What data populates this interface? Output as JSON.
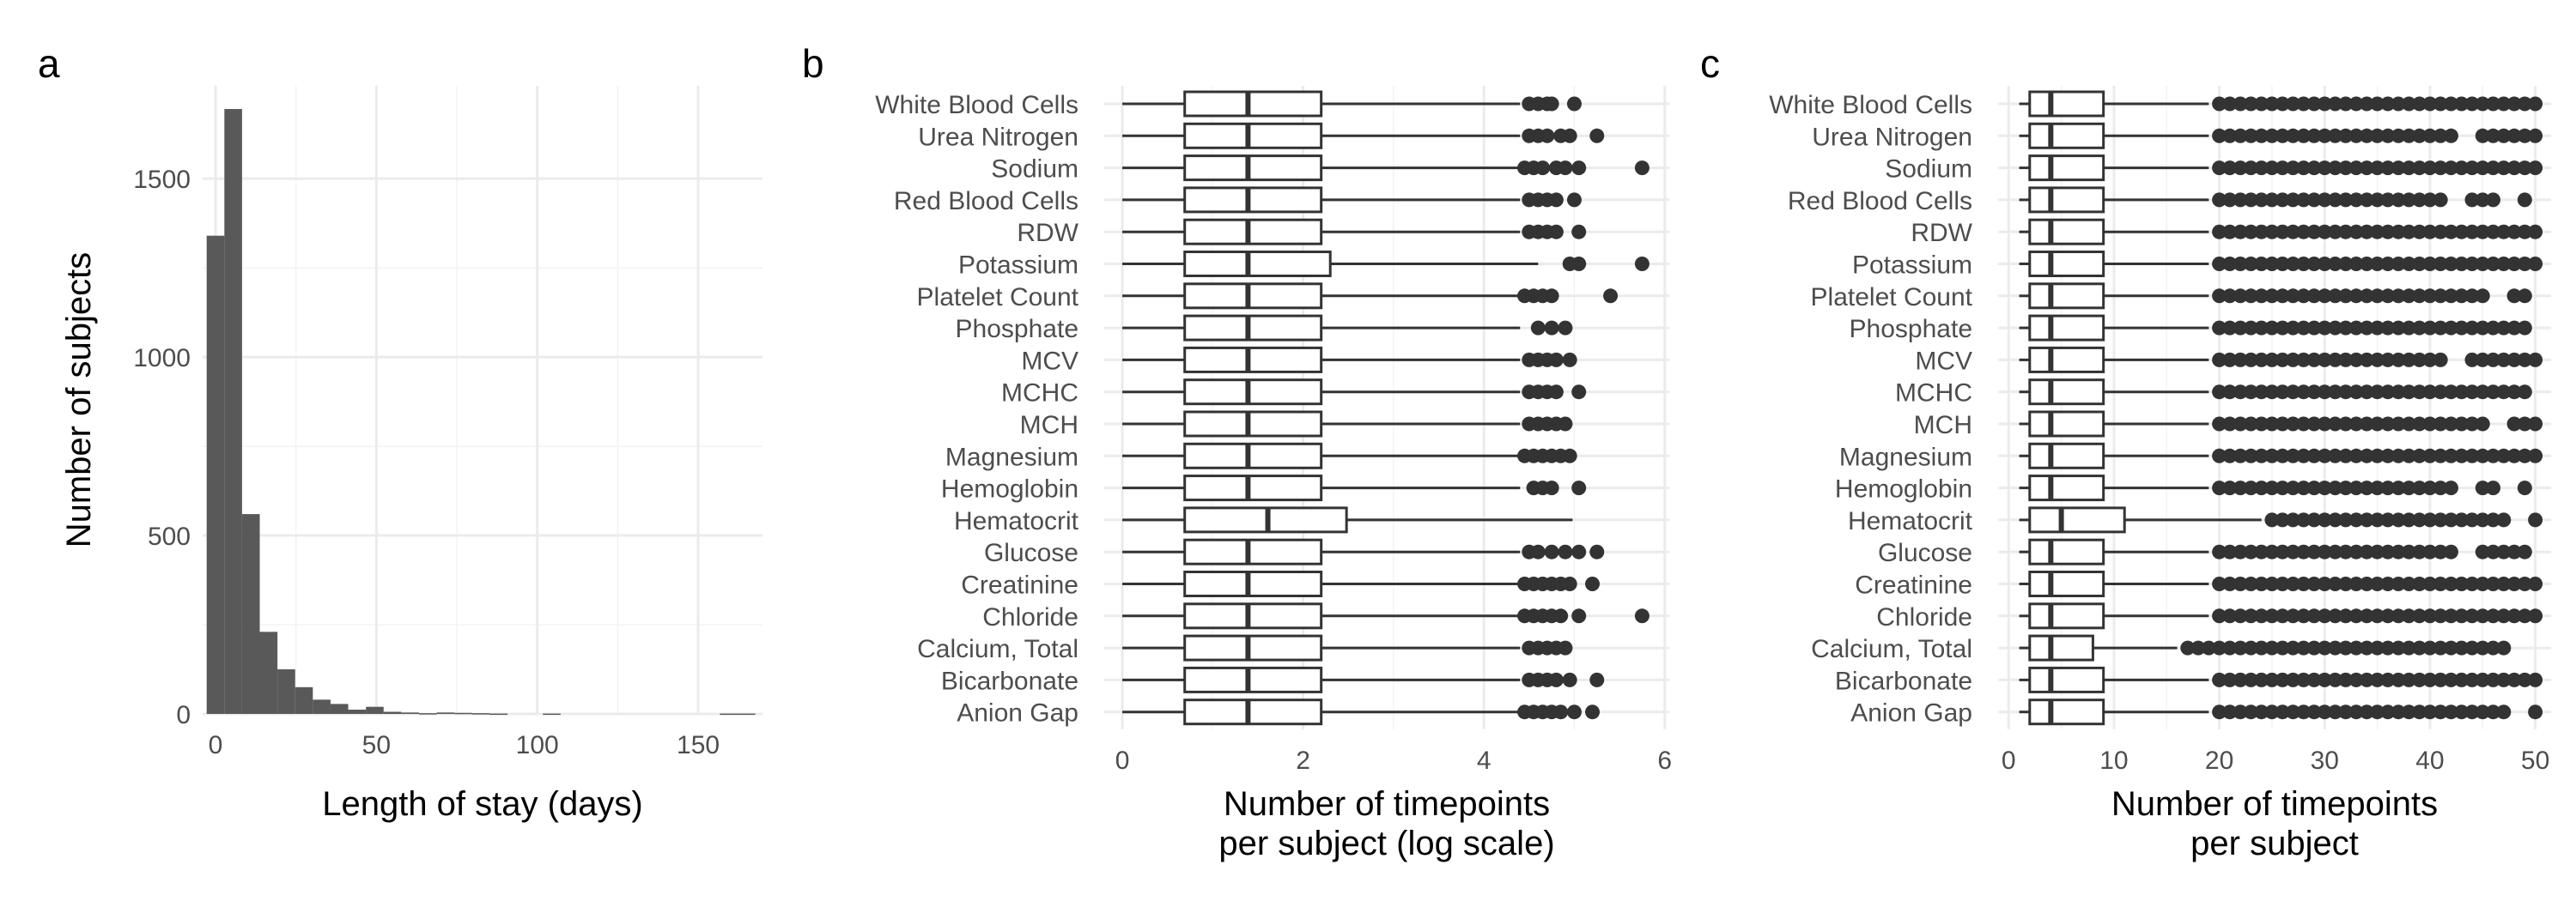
{
  "chart_data": [
    {
      "panel": "a",
      "type": "bar",
      "xlabel": "Length of stay (days)",
      "ylabel": "Number of subjects",
      "xlim": [
        -4,
        170
      ],
      "ylim": [
        0,
        1760
      ],
      "xticks": [
        0,
        50,
        100,
        150
      ],
      "yticks": [
        0,
        500,
        1000,
        1500
      ],
      "grid": true,
      "bin_width": 5.5,
      "bins_start": [
        -2.75,
        2.75,
        8.25,
        13.75,
        19.25,
        24.75,
        30.25,
        35.75,
        41.25,
        46.75,
        52.25,
        57.75,
        63.25,
        68.75,
        74.25,
        79.75,
        85.25,
        90.75,
        96.25,
        101.75,
        107.25,
        112.75,
        118.25,
        123.75,
        129.25,
        134.75,
        140.25,
        145.75,
        151.25,
        156.75,
        162.25
      ],
      "values": [
        1340,
        1695,
        560,
        230,
        125,
        75,
        40,
        28,
        12,
        20,
        6,
        4,
        2,
        4,
        3,
        2,
        1,
        0,
        0,
        1,
        0,
        0,
        0,
        0,
        0,
        0,
        0,
        0,
        0,
        1,
        1
      ]
    },
    {
      "panel": "b",
      "type": "boxplot",
      "xlabel": "Number of timepoints\nper subject (log scale)",
      "xlim": [
        -0.2,
        6.05
      ],
      "xticks": [
        0,
        2,
        4,
        6
      ],
      "grid": true,
      "categories": [
        "White Blood Cells",
        "Urea Nitrogen",
        "Sodium",
        "Red Blood Cells",
        "RDW",
        "Potassium",
        "Platelet Count",
        "Phosphate",
        "MCV",
        "MCHC",
        "MCH",
        "Magnesium",
        "Hemoglobin",
        "Hematocrit",
        "Glucose",
        "Creatinine",
        "Chloride",
        "Calcium, Total",
        "Bicarbonate",
        "Anion Gap"
      ],
      "boxes": [
        {
          "whisker_low": 0,
          "q1": 0.69,
          "median": 1.39,
          "q3": 2.2,
          "whisker_high": 4.4,
          "outliers": [
            4.5,
            4.6,
            4.7,
            4.75,
            5.0
          ]
        },
        {
          "whisker_low": 0,
          "q1": 0.69,
          "median": 1.39,
          "q3": 2.2,
          "whisker_high": 4.4,
          "outliers": [
            4.5,
            4.6,
            4.7,
            4.85,
            4.95,
            5.25
          ]
        },
        {
          "whisker_low": 0,
          "q1": 0.69,
          "median": 1.39,
          "q3": 2.2,
          "whisker_high": 4.4,
          "outliers": [
            4.45,
            4.55,
            4.65,
            4.8,
            4.9,
            5.05,
            5.75
          ]
        },
        {
          "whisker_low": 0,
          "q1": 0.69,
          "median": 1.39,
          "q3": 2.2,
          "whisker_high": 4.4,
          "outliers": [
            4.5,
            4.6,
            4.7,
            4.8,
            5.0
          ]
        },
        {
          "whisker_low": 0,
          "q1": 0.69,
          "median": 1.39,
          "q3": 2.2,
          "whisker_high": 4.4,
          "outliers": [
            4.5,
            4.6,
            4.7,
            4.8,
            5.05
          ]
        },
        {
          "whisker_low": 0,
          "q1": 0.69,
          "median": 1.39,
          "q3": 2.3,
          "whisker_high": 4.6,
          "outliers": [
            4.95,
            5.05,
            5.75
          ]
        },
        {
          "whisker_low": 0,
          "q1": 0.69,
          "median": 1.39,
          "q3": 2.2,
          "whisker_high": 4.4,
          "outliers": [
            4.45,
            4.55,
            4.65,
            4.75,
            5.4
          ]
        },
        {
          "whisker_low": 0,
          "q1": 0.69,
          "median": 1.39,
          "q3": 2.2,
          "whisker_high": 4.4,
          "outliers": [
            4.6,
            4.75,
            4.9
          ]
        },
        {
          "whisker_low": 0,
          "q1": 0.69,
          "median": 1.39,
          "q3": 2.2,
          "whisker_high": 4.4,
          "outliers": [
            4.5,
            4.6,
            4.7,
            4.8,
            4.95
          ]
        },
        {
          "whisker_low": 0,
          "q1": 0.69,
          "median": 1.39,
          "q3": 2.2,
          "whisker_high": 4.4,
          "outliers": [
            4.5,
            4.6,
            4.7,
            4.8,
            5.05
          ]
        },
        {
          "whisker_low": 0,
          "q1": 0.69,
          "median": 1.39,
          "q3": 2.2,
          "whisker_high": 4.4,
          "outliers": [
            4.5,
            4.6,
            4.7,
            4.8,
            4.9
          ]
        },
        {
          "whisker_low": 0,
          "q1": 0.69,
          "median": 1.39,
          "q3": 2.2,
          "whisker_high": 4.4,
          "outliers": [
            4.45,
            4.55,
            4.65,
            4.75,
            4.85,
            4.95
          ]
        },
        {
          "whisker_low": 0,
          "q1": 0.69,
          "median": 1.39,
          "q3": 2.2,
          "whisker_high": 4.4,
          "outliers": [
            4.55,
            4.65,
            4.75,
            5.05
          ]
        },
        {
          "whisker_low": 0,
          "q1": 0.69,
          "median": 1.61,
          "q3": 2.48,
          "whisker_high": 4.98,
          "outliers": []
        },
        {
          "whisker_low": 0,
          "q1": 0.69,
          "median": 1.39,
          "q3": 2.2,
          "whisker_high": 4.4,
          "outliers": [
            4.5,
            4.6,
            4.75,
            4.9,
            5.05,
            5.25
          ]
        },
        {
          "whisker_low": 0,
          "q1": 0.69,
          "median": 1.39,
          "q3": 2.2,
          "whisker_high": 4.4,
          "outliers": [
            4.45,
            4.55,
            4.65,
            4.75,
            4.85,
            4.95,
            5.2
          ]
        },
        {
          "whisker_low": 0,
          "q1": 0.69,
          "median": 1.39,
          "q3": 2.2,
          "whisker_high": 4.4,
          "outliers": [
            4.45,
            4.55,
            4.65,
            4.75,
            4.85,
            5.05,
            5.75
          ]
        },
        {
          "whisker_low": 0,
          "q1": 0.69,
          "median": 1.39,
          "q3": 2.2,
          "whisker_high": 4.4,
          "outliers": [
            4.5,
            4.6,
            4.7,
            4.8,
            4.9
          ]
        },
        {
          "whisker_low": 0,
          "q1": 0.69,
          "median": 1.39,
          "q3": 2.2,
          "whisker_high": 4.4,
          "outliers": [
            4.5,
            4.6,
            4.7,
            4.8,
            4.95,
            5.25
          ]
        },
        {
          "whisker_low": 0,
          "q1": 0.69,
          "median": 1.39,
          "q3": 2.2,
          "whisker_high": 4.4,
          "outliers": [
            4.45,
            4.55,
            4.65,
            4.75,
            4.85,
            5.0,
            5.2
          ]
        }
      ]
    },
    {
      "panel": "c",
      "type": "boxplot",
      "xlabel": "Number of timepoints\nper subject",
      "xlim": [
        -1,
        51.5
      ],
      "xticks": [
        0,
        10,
        20,
        30,
        40,
        50
      ],
      "grid": true,
      "categories": [
        "White Blood Cells",
        "Urea Nitrogen",
        "Sodium",
        "Red Blood Cells",
        "RDW",
        "Potassium",
        "Platelet Count",
        "Phosphate",
        "MCV",
        "MCHC",
        "MCH",
        "Magnesium",
        "Hemoglobin",
        "Hematocrit",
        "Glucose",
        "Creatinine",
        "Chloride",
        "Calcium, Total",
        "Bicarbonate",
        "Anion Gap"
      ],
      "boxes": [
        {
          "whisker_low": 1,
          "q1": 2,
          "median": 4,
          "q3": 9,
          "whisker_high": 19,
          "outliers_range": [
            20,
            50
          ],
          "outliers_gaps": []
        },
        {
          "whisker_low": 1,
          "q1": 2,
          "median": 4,
          "q3": 9,
          "whisker_high": 19,
          "outliers_range": [
            20,
            50
          ],
          "outliers_gaps": [
            [
              43,
              44
            ]
          ]
        },
        {
          "whisker_low": 1,
          "q1": 2,
          "median": 4,
          "q3": 9,
          "whisker_high": 19,
          "outliers_range": [
            20,
            50
          ],
          "outliers_gaps": []
        },
        {
          "whisker_low": 1,
          "q1": 2,
          "median": 4,
          "q3": 9,
          "whisker_high": 19,
          "outliers_range": [
            20,
            49
          ],
          "outliers_gaps": [
            [
              42,
              43
            ],
            [
              47,
              48
            ]
          ]
        },
        {
          "whisker_low": 1,
          "q1": 2,
          "median": 4,
          "q3": 9,
          "whisker_high": 19,
          "outliers_range": [
            20,
            50
          ],
          "outliers_gaps": []
        },
        {
          "whisker_low": 1,
          "q1": 2,
          "median": 4,
          "q3": 9,
          "whisker_high": 19,
          "outliers_range": [
            20,
            50
          ],
          "outliers_gaps": []
        },
        {
          "whisker_low": 1,
          "q1": 2,
          "median": 4,
          "q3": 9,
          "whisker_high": 19,
          "outliers_range": [
            20,
            49
          ],
          "outliers_gaps": [
            [
              46,
              47
            ]
          ]
        },
        {
          "whisker_low": 1,
          "q1": 2,
          "median": 4,
          "q3": 9,
          "whisker_high": 19,
          "outliers_range": [
            20,
            49
          ],
          "outliers_gaps": []
        },
        {
          "whisker_low": 1,
          "q1": 2,
          "median": 4,
          "q3": 9,
          "whisker_high": 19,
          "outliers_range": [
            20,
            50
          ],
          "outliers_gaps": [
            [
              42,
              43
            ]
          ]
        },
        {
          "whisker_low": 1,
          "q1": 2,
          "median": 4,
          "q3": 9,
          "whisker_high": 19,
          "outliers_range": [
            20,
            49
          ],
          "outliers_gaps": []
        },
        {
          "whisker_low": 1,
          "q1": 2,
          "median": 4,
          "q3": 9,
          "whisker_high": 19,
          "outliers_range": [
            20,
            50
          ],
          "outliers_gaps": [
            [
              46,
              47
            ]
          ]
        },
        {
          "whisker_low": 1,
          "q1": 2,
          "median": 4,
          "q3": 9,
          "whisker_high": 19,
          "outliers_range": [
            20,
            50
          ],
          "outliers_gaps": []
        },
        {
          "whisker_low": 1,
          "q1": 2,
          "median": 4,
          "q3": 9,
          "whisker_high": 19,
          "outliers_range": [
            20,
            49
          ],
          "outliers_gaps": [
            [
              43,
              44
            ],
            [
              47,
              48
            ]
          ]
        },
        {
          "whisker_low": 1,
          "q1": 2,
          "median": 5,
          "q3": 11,
          "whisker_high": 24,
          "outliers_range": [
            25,
            50
          ],
          "outliers_gaps": [
            [
              48,
              49
            ]
          ]
        },
        {
          "whisker_low": 1,
          "q1": 2,
          "median": 4,
          "q3": 9,
          "whisker_high": 19,
          "outliers_range": [
            20,
            49
          ],
          "outliers_gaps": [
            [
              43,
              44
            ]
          ]
        },
        {
          "whisker_low": 1,
          "q1": 2,
          "median": 4,
          "q3": 9,
          "whisker_high": 19,
          "outliers_range": [
            20,
            50
          ],
          "outliers_gaps": []
        },
        {
          "whisker_low": 1,
          "q1": 2,
          "median": 4,
          "q3": 9,
          "whisker_high": 19,
          "outliers_range": [
            20,
            50
          ],
          "outliers_gaps": []
        },
        {
          "whisker_low": 1,
          "q1": 2,
          "median": 4,
          "q3": 8,
          "whisker_high": 16,
          "outliers_range": [
            17,
            47
          ],
          "outliers_gaps": []
        },
        {
          "whisker_low": 1,
          "q1": 2,
          "median": 4,
          "q3": 9,
          "whisker_high": 19,
          "outliers_range": [
            20,
            50
          ],
          "outliers_gaps": []
        },
        {
          "whisker_low": 1,
          "q1": 2,
          "median": 4,
          "q3": 9,
          "whisker_high": 19,
          "outliers_range": [
            20,
            50
          ],
          "outliers_gaps": [
            [
              48,
              49
            ]
          ]
        }
      ]
    }
  ]
}
